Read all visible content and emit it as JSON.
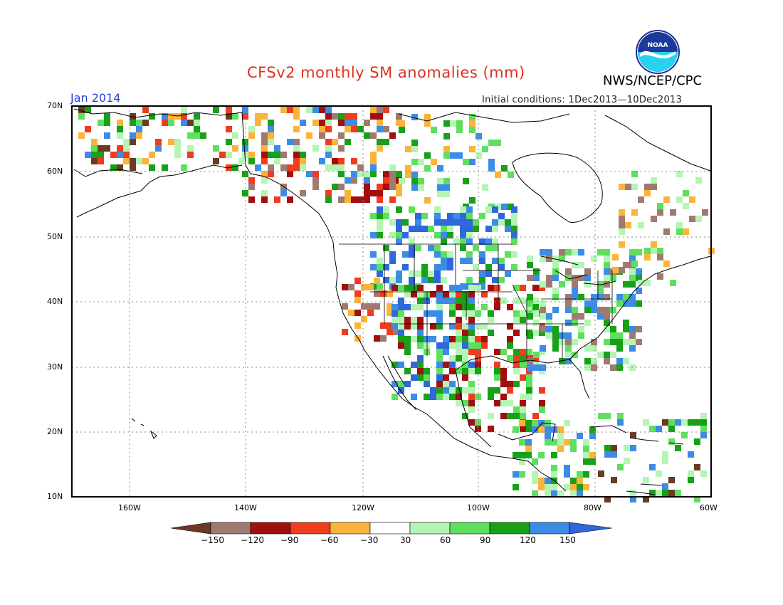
{
  "title": "CFSv2 monthly SM anomalies (mm)",
  "period": "Jan 2014",
  "agency": "NWS/NCEP/CPC",
  "initial_conditions": "Initial conditions:  1Dec2013—10Dec2013",
  "logo_text": "NOAA",
  "latitude_labels": [
    "70N",
    "60N",
    "50N",
    "40N",
    "30N",
    "20N",
    "10N"
  ],
  "longitude_labels": [
    "160W",
    "140W",
    "120W",
    "100W",
    "80W",
    "60W"
  ],
  "legend": {
    "ticks": [
      "−150",
      "−120",
      "−90",
      "−60",
      "−30",
      "30",
      "60",
      "90",
      "120",
      "150"
    ],
    "colors": [
      "#6b3a25",
      "#a07a70",
      "#a10f0f",
      "#f03c1e",
      "#fbb43a",
      "#ffffff",
      "#b4f5b4",
      "#5ee05e",
      "#18a018",
      "#3c8ce6",
      "#2e68dc"
    ]
  }
}
